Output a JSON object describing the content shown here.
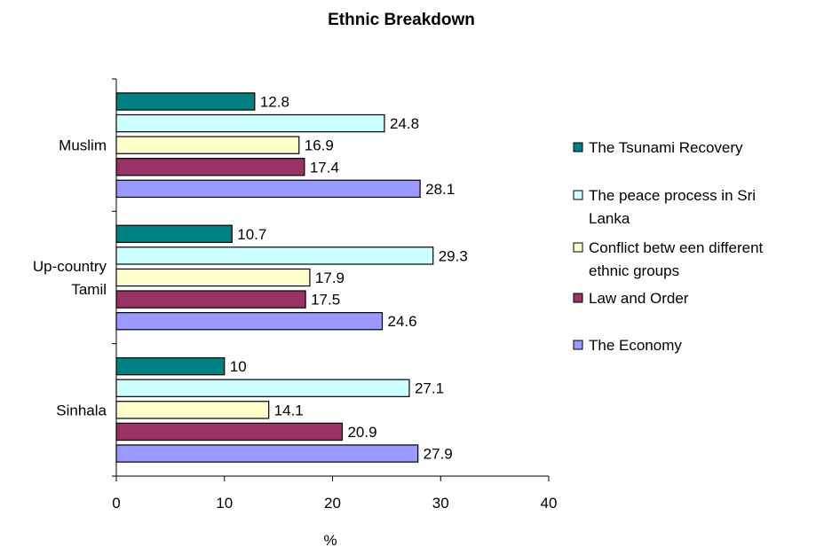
{
  "chart_data": {
    "type": "bar",
    "orientation": "horizontal",
    "title": "Ethnic Breakdown",
    "xlabel": "%",
    "ylabel": "",
    "xlim": [
      0,
      40
    ],
    "xticks": [
      0,
      10,
      20,
      30,
      40
    ],
    "grid": false,
    "legend_position": "right",
    "categories": [
      [
        "Muslim"
      ],
      [
        "Up-country",
        "Tamil"
      ],
      [
        "Sinhala"
      ]
    ],
    "series": [
      {
        "name": [
          "The Tsunami Recovery"
        ],
        "color": "#008080",
        "values": [
          12.8,
          10.7,
          10
        ]
      },
      {
        "name": [
          "The peace process in Sri",
          "Lanka"
        ],
        "color": "#ccffff",
        "values": [
          24.8,
          29.3,
          27.1
        ]
      },
      {
        "name": [
          "Conflict betw een different",
          "ethnic groups"
        ],
        "color": "#ffffcc",
        "values": [
          16.9,
          17.9,
          14.1
        ]
      },
      {
        "name": [
          "Law and Order"
        ],
        "color": "#993366",
        "values": [
          17.4,
          17.5,
          20.9
        ]
      },
      {
        "name": [
          "The Economy"
        ],
        "color": "#9999ff",
        "values": [
          28.1,
          24.6,
          27.9
        ]
      }
    ]
  }
}
